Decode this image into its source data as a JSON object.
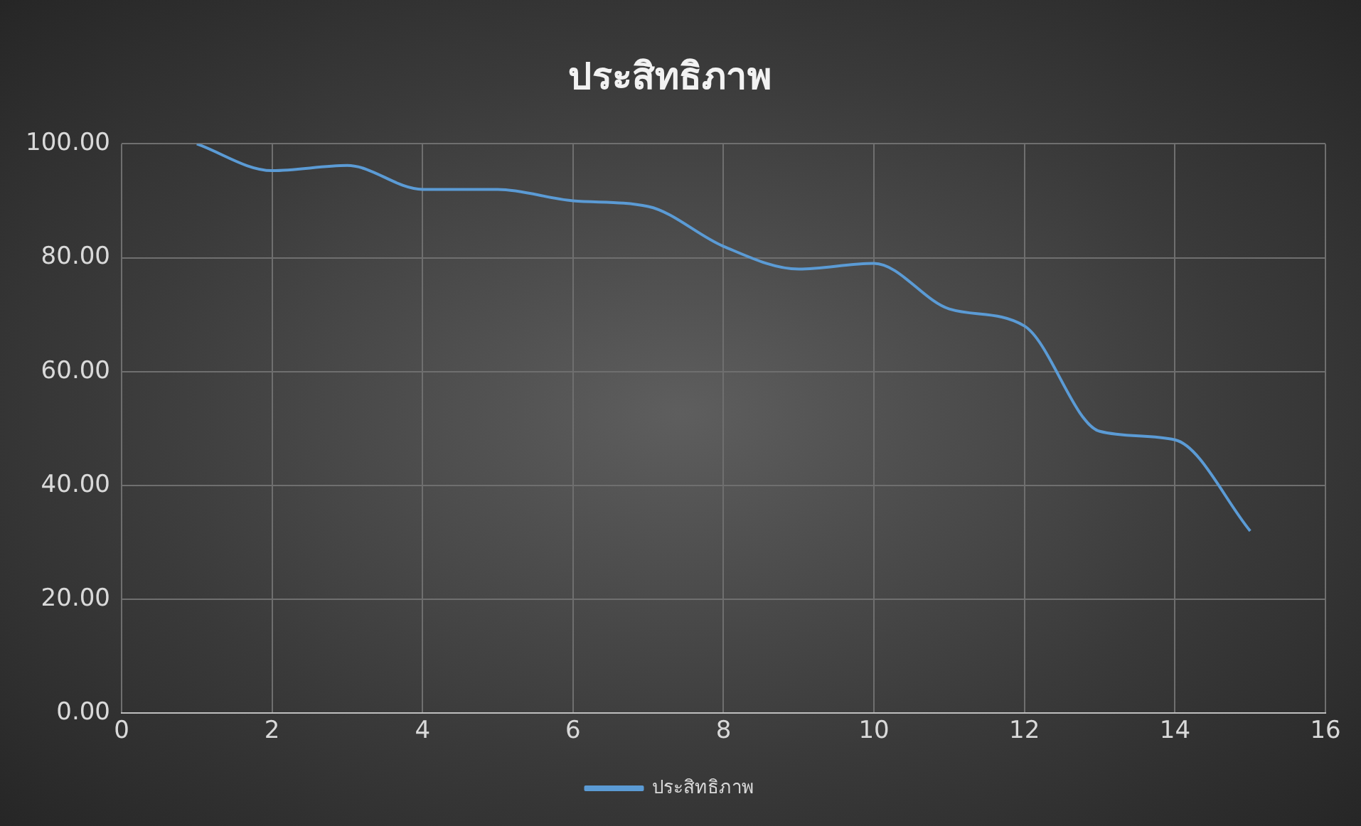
{
  "chart_data": {
    "type": "line",
    "title": "ประสิทธิภาพ",
    "x": [
      1,
      2,
      3,
      4,
      5,
      6,
      7,
      8,
      9,
      10,
      11,
      12,
      13,
      14,
      15
    ],
    "series": [
      {
        "name": "ประสิทธิภาพ",
        "color": "#5b9bd5",
        "values": [
          100,
          95.3,
          96.2,
          92,
          92,
          90,
          89,
          82,
          78,
          79,
          71,
          68,
          49.5,
          48,
          32
        ]
      }
    ],
    "xlim": [
      0,
      16
    ],
    "xticks": [
      0,
      2,
      4,
      6,
      8,
      10,
      12,
      14,
      16
    ],
    "ylim": [
      0,
      100
    ],
    "yticks": [
      {
        "value": 0,
        "label": "0.00"
      },
      {
        "value": 20,
        "label": "20.00"
      },
      {
        "value": 40,
        "label": "40.00"
      },
      {
        "value": 60,
        "label": "60.00"
      },
      {
        "value": 80,
        "label": "80.00"
      },
      {
        "value": 100,
        "label": "100.00"
      }
    ],
    "grid": true,
    "legend": "bottom",
    "marker": "none",
    "line_style": "solid"
  }
}
